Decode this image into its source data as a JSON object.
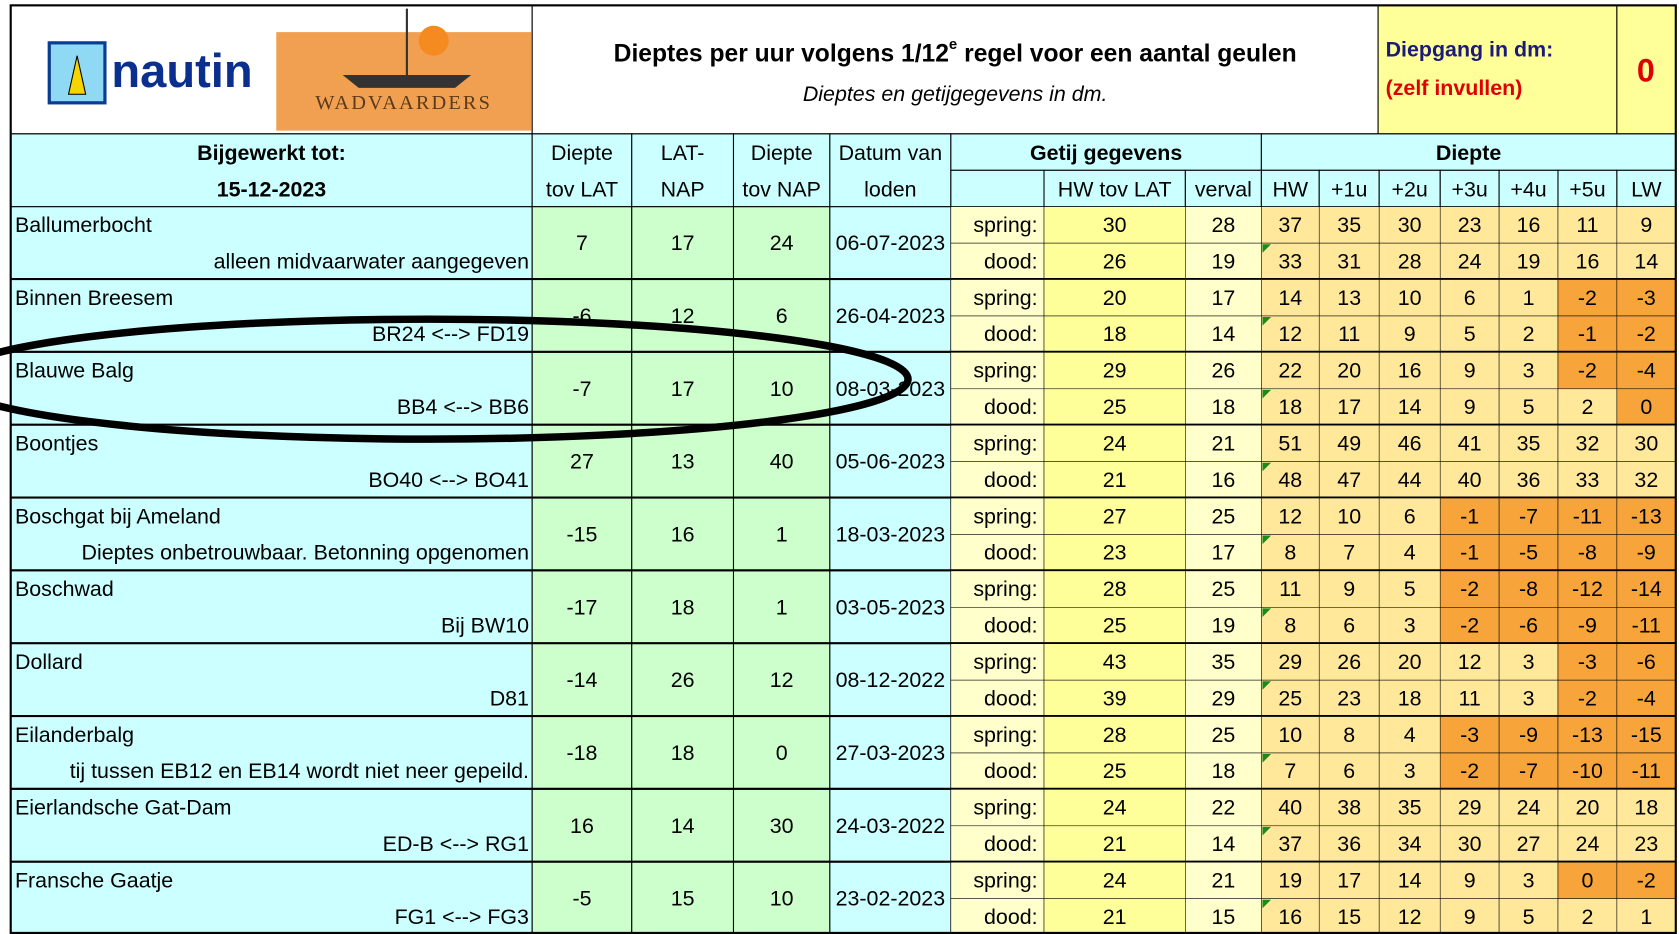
{
  "header": {
    "logo_left": "nautin",
    "logo_right": "WADVAARDERS",
    "title_main": "Dieptes per uur volgens 1/12",
    "title_sup": "e",
    "title_end": " regel voor een aantal geulen",
    "subtitle": "Dieptes en getijgegevens in dm.",
    "draft_label": "Diepgang in dm:",
    "draft_hint": "(zelf invullen)",
    "draft_value": 0
  },
  "columns": {
    "updated_label": "Bijgewerkt tot:",
    "updated_date": "15-12-2023",
    "lat": [
      "Diepte",
      "tov LAT"
    ],
    "latnap": [
      "LAT-",
      "NAP"
    ],
    "nap": [
      "Diepte",
      "tov NAP"
    ],
    "date": [
      "Datum van",
      "loden"
    ],
    "tide_group": "Getij gegevens",
    "hw_lat": "HW tov LAT",
    "range": "verval",
    "depth_group": "Diepte",
    "hours": [
      "HW",
      "+1u",
      "+2u",
      "+3u",
      "+4u",
      "+5u",
      "LW"
    ]
  },
  "tide_labels": [
    "spring:",
    "dood:"
  ],
  "rows": [
    {
      "name": "Ballumerbocht",
      "note": "alleen midvaarwater aangegeven",
      "lat": 7,
      "latnap": 17,
      "nap": 24,
      "date": "06-07-2023",
      "tides": [
        {
          "hw": 30,
          "range": 28,
          "depths": [
            37,
            35,
            30,
            23,
            16,
            11,
            9
          ]
        },
        {
          "hw": 26,
          "range": 19,
          "depths": [
            33,
            31,
            28,
            24,
            19,
            16,
            14
          ]
        }
      ]
    },
    {
      "name": "Binnen Breesem",
      "note": "BR24 <--> FD19",
      "lat": -6,
      "latnap": 12,
      "nap": 6,
      "date": "26-04-2023",
      "tides": [
        {
          "hw": 20,
          "range": 17,
          "depths": [
            14,
            13,
            10,
            6,
            1,
            -2,
            -3
          ]
        },
        {
          "hw": 18,
          "range": 14,
          "depths": [
            12,
            11,
            9,
            5,
            2,
            -1,
            -2
          ]
        }
      ]
    },
    {
      "name": "Blauwe Balg",
      "note": "BB4 <--> BB6",
      "lat": -7,
      "latnap": 17,
      "nap": 10,
      "date": "08-03-2023",
      "tides": [
        {
          "hw": 29,
          "range": 26,
          "depths": [
            22,
            20,
            16,
            9,
            3,
            -2,
            -4
          ]
        },
        {
          "hw": 25,
          "range": 18,
          "depths": [
            18,
            17,
            14,
            9,
            5,
            2,
            0
          ]
        }
      ]
    },
    {
      "name": "Boontjes",
      "note": "BO40 <--> BO41",
      "lat": 27,
      "latnap": 13,
      "nap": 40,
      "date": "05-06-2023",
      "tides": [
        {
          "hw": 24,
          "range": 21,
          "depths": [
            51,
            49,
            46,
            41,
            35,
            32,
            30
          ]
        },
        {
          "hw": 21,
          "range": 16,
          "depths": [
            48,
            47,
            44,
            40,
            36,
            33,
            32
          ]
        }
      ]
    },
    {
      "name": "Boschgat bij Ameland",
      "note": "Dieptes onbetrouwbaar. Betonning opgenomen",
      "lat": -15,
      "latnap": 16,
      "nap": 1,
      "date": "18-03-2023",
      "tides": [
        {
          "hw": 27,
          "range": 25,
          "depths": [
            12,
            10,
            6,
            -1,
            -7,
            -11,
            -13
          ]
        },
        {
          "hw": 23,
          "range": 17,
          "depths": [
            8,
            7,
            4,
            -1,
            -5,
            -8,
            -9
          ]
        }
      ]
    },
    {
      "name": "Boschwad",
      "note": "Bij BW10",
      "lat": -17,
      "latnap": 18,
      "nap": 1,
      "date": "03-05-2023",
      "tides": [
        {
          "hw": 28,
          "range": 25,
          "depths": [
            11,
            9,
            5,
            -2,
            -8,
            -12,
            -14
          ]
        },
        {
          "hw": 25,
          "range": 19,
          "depths": [
            8,
            6,
            3,
            -2,
            -6,
            -9,
            -11
          ]
        }
      ]
    },
    {
      "name": "Dollard",
      "note": "D81",
      "lat": -14,
      "latnap": 26,
      "nap": 12,
      "date": "08-12-2022",
      "tides": [
        {
          "hw": 43,
          "range": 35,
          "depths": [
            29,
            26,
            20,
            12,
            3,
            -3,
            -6
          ]
        },
        {
          "hw": 39,
          "range": 29,
          "depths": [
            25,
            23,
            18,
            11,
            3,
            -2,
            -4
          ]
        }
      ]
    },
    {
      "name": "Eilanderbalg",
      "note": "tij tussen EB12 en EB14 wordt niet neer gepeild.",
      "lat": -18,
      "latnap": 18,
      "nap": 0,
      "date": "27-03-2023",
      "tides": [
        {
          "hw": 28,
          "range": 25,
          "depths": [
            10,
            8,
            4,
            -3,
            -9,
            -13,
            -15
          ]
        },
        {
          "hw": 25,
          "range": 18,
          "depths": [
            7,
            6,
            3,
            -2,
            -7,
            -10,
            -11
          ]
        }
      ]
    },
    {
      "name": "Eierlandsche Gat-Dam",
      "note": "ED-B <--> RG1",
      "lat": 16,
      "latnap": 14,
      "nap": 30,
      "date": "24-03-2022",
      "tides": [
        {
          "hw": 24,
          "range": 22,
          "depths": [
            40,
            38,
            35,
            29,
            24,
            20,
            18
          ]
        },
        {
          "hw": 21,
          "range": 14,
          "depths": [
            37,
            36,
            34,
            30,
            27,
            24,
            23
          ]
        }
      ]
    },
    {
      "name": "Fransche Gaatje",
      "note": "FG1 <--> FG3",
      "lat": -5,
      "latnap": 15,
      "nap": 10,
      "date": "23-02-2023",
      "tides": [
        {
          "hw": 24,
          "range": 21,
          "depths": [
            19,
            17,
            14,
            9,
            3,
            0,
            -2
          ]
        },
        {
          "hw": 21,
          "range": 15,
          "depths": [
            16,
            15,
            12,
            9,
            5,
            2,
            1
          ]
        }
      ]
    }
  ]
}
